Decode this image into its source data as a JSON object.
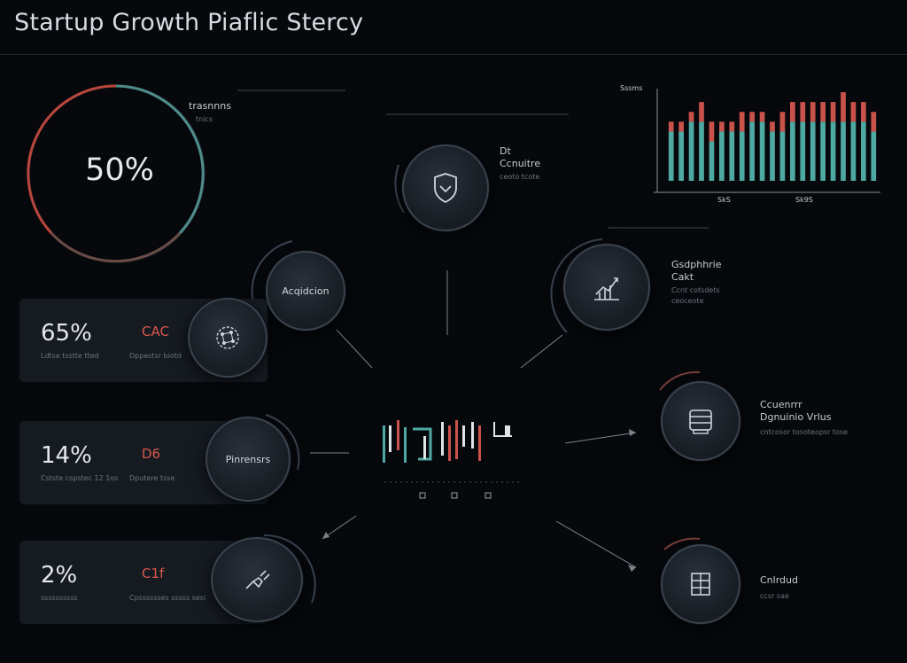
{
  "header": {
    "title": "Startup Growth Piaflic Stercy"
  },
  "gauge": {
    "value": "50%",
    "label": "trasnnns",
    "sublabel": "tnics",
    "track_color": "#3c4a50",
    "accent_colors": [
      "#c0483d",
      "#5aa6a0"
    ]
  },
  "metric_cards": [
    {
      "percent": "65%",
      "code": "CAC",
      "left_sub": "Ldtse tsstte tted",
      "right_sub": "Dppestsr biotd",
      "node_label": ""
    },
    {
      "percent": "14%",
      "code": "D6",
      "left_sub": "Cstste cspstec 12 1os",
      "right_sub": "Dputere tsse",
      "node_label": "Pinrensrs"
    },
    {
      "percent": "2%",
      "code": "C1f",
      "left_sub": "ssssssssss",
      "right_sub": "Cpsssssses sssss sesi",
      "node_label": ""
    }
  ],
  "nodes": {
    "acquisition": {
      "label": "Acqidcion"
    },
    "top": {
      "title": "Dt",
      "subtitle": "Ccnuitre",
      "sub": "ceoto tcote"
    },
    "right_upper": {
      "title": "Gsdphhrie",
      "title2": "Cakt",
      "sub1": "Ccnt cotsdets",
      "sub2": "ceoceote"
    },
    "right_middle": {
      "title": "Ccuenrrr",
      "title2": "Dgnuinio Vrlus",
      "sub": "cntcosor tosoteopsr tose"
    },
    "right_lower": {
      "title": "Cnlrdud",
      "sub": "ccsr sae"
    }
  },
  "chart_data": {
    "type": "bar",
    "title": "",
    "xlabel": "",
    "ylabel": "Sssms",
    "tick_labels": [
      "SkS",
      "Sk9S"
    ],
    "series": [
      {
        "values": [
          5,
          5,
          6,
          6,
          4,
          5,
          5,
          5,
          6,
          6,
          5,
          5,
          6,
          6,
          6,
          6,
          6,
          6,
          6,
          6,
          5
        ]
      },
      {
        "values": [
          1,
          1,
          1,
          2,
          2,
          1,
          1,
          2,
          1,
          1,
          1,
          2,
          2,
          2,
          2,
          2,
          2,
          3,
          2,
          2,
          2
        ]
      }
    ],
    "colors": {
      "bottom": "#4fa9a3",
      "top": "#c9524a"
    }
  },
  "center_glyphs": {
    "ticks": [
      "",
      "",
      "",
      ""
    ]
  }
}
